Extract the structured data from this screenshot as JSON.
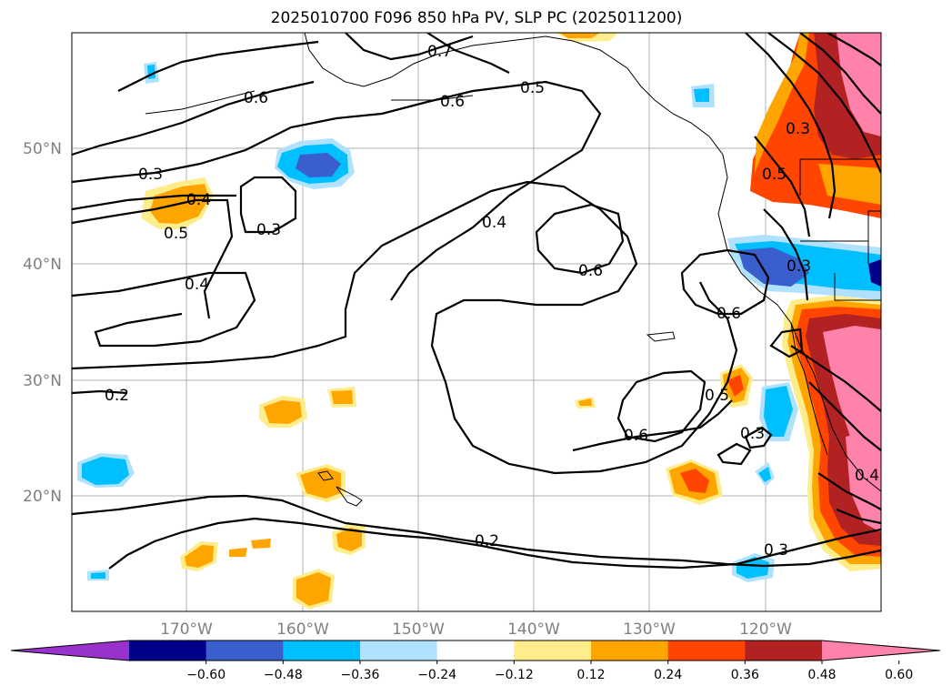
{
  "title": "2025010700 F096 850 hPa PV, SLP PC (2025011200)",
  "lat_labels": [
    "50°N",
    "40°N",
    "30°N",
    "20°N"
  ],
  "lon_labels": [
    "170°W",
    "160°W",
    "150°W",
    "140°W",
    "130°W",
    "120°W"
  ],
  "colorbar": {
    "colors": [
      "#9932cc",
      "#00008b",
      "#3a5fcd",
      "#00bfff",
      "#b0e2ff",
      "#ffffff",
      "#ffec8b",
      "#ffa500",
      "#ff4500",
      "#b22222",
      "#ff82ab"
    ],
    "labels": [
      "−0.60",
      "−0.48",
      "−0.36",
      "−0.24",
      "−0.12",
      "0.12",
      "0.24",
      "0.36",
      "0.48",
      "0.60"
    ]
  },
  "contour_labels": [
    "0.7",
    "0.6",
    "0.5",
    "0.6",
    "0.3",
    "0.4",
    "0.5",
    "0.3",
    "0.4",
    "0.4",
    "0.6",
    "0.6",
    "0.3",
    "0.2",
    "0.5",
    "0.6",
    "0.3",
    "0.2",
    "0.3",
    "0.5",
    "0.3",
    "0.4"
  ]
}
